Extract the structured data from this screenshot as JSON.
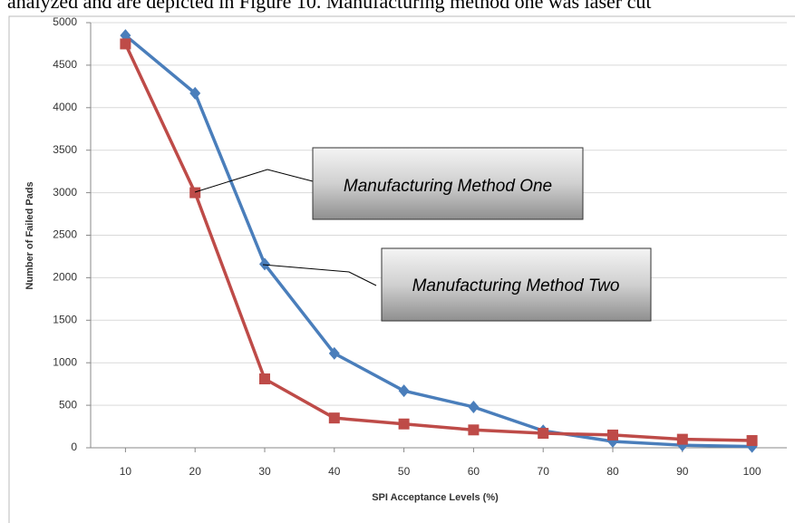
{
  "text_above": "analyzed and are depicted in Figure 10.  Manufacturing method one was laser cut",
  "chart_data": {
    "type": "line",
    "xlabel": "SPI Acceptance Levels (%)",
    "ylabel": "Number of Failed Pads",
    "x": [
      10,
      20,
      30,
      40,
      50,
      60,
      70,
      80,
      90,
      100
    ],
    "series": [
      {
        "name": "Manufacturing Method Two",
        "color": "#4a7ebb",
        "marker": "diamond",
        "values": [
          4850,
          4170,
          2160,
          1110,
          670,
          480,
          200,
          75,
          30,
          15
        ]
      },
      {
        "name": "Manufacturing Method One",
        "color": "#be4b48",
        "marker": "square",
        "values": [
          4750,
          3000,
          810,
          350,
          280,
          210,
          170,
          150,
          100,
          85
        ]
      }
    ],
    "xlim": [
      5,
      105
    ],
    "xticks": [
      10,
      20,
      30,
      40,
      50,
      60,
      70,
      80,
      90,
      100
    ],
    "ylim": [
      0,
      5000
    ],
    "yticks": [
      0,
      500,
      1000,
      1500,
      2000,
      2500,
      3000,
      3500,
      4000,
      4500,
      5000
    ],
    "grid": true
  }
}
